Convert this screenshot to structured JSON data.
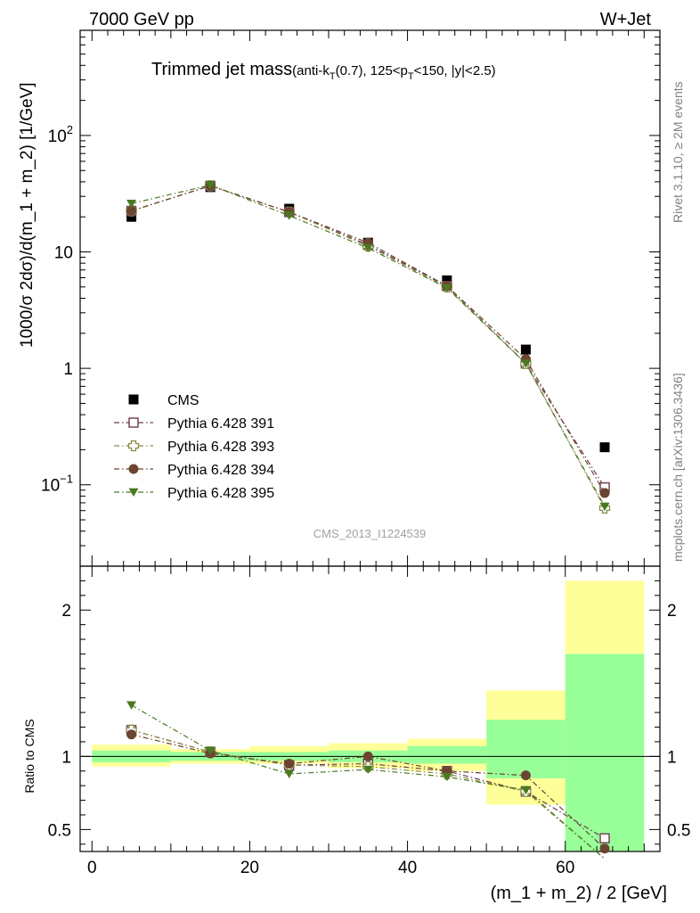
{
  "header": {
    "left": "7000 GeV pp",
    "right": "W+Jet",
    "title_main": "Trimmed jet mass",
    "title_detail_1": "(anti-k",
    "title_sub_1": "T",
    "title_detail_2": "(0.7), 125<p",
    "title_sub_2": "T",
    "title_detail_3": "<150, |y|<2.5)"
  },
  "side_labels": {
    "rivet": "Rivet 3.1.10, ≥ 2M events",
    "mcplots": "mcplots.cern.ch [arXiv:1306.3436]"
  },
  "watermark": "CMS_2013_I1224539",
  "chart_data": [
    {
      "panel": "main",
      "type": "scatter",
      "ylabel": "1000/σ 2dσ)/d(m_1 + m_2) [1/GeV]",
      "yscale": "log",
      "ylim": [
        0.02,
        800
      ],
      "xlim": [
        -1.5,
        72
      ],
      "y_ticks": [
        {
          "v": 0.1,
          "base": "10",
          "exp": "−1"
        },
        {
          "v": 1,
          "label": "1"
        },
        {
          "v": 10,
          "label": "10"
        },
        {
          "v": 100,
          "base": "10",
          "exp": "2"
        }
      ],
      "x": [
        5,
        15,
        25,
        35,
        45,
        55,
        65
      ],
      "series": [
        {
          "name": "CMS",
          "color": "#000000",
          "marker": "square-filled",
          "line": "none",
          "values": [
            20.0,
            36.0,
            23.5,
            12.0,
            5.7,
            1.45,
            0.21
          ]
        },
        {
          "name": "Pythia 6.428 391",
          "color": "#6b3a4f",
          "marker": "square-open",
          "line": "dash-dot",
          "values": [
            22.5,
            37.0,
            22.0,
            11.5,
            5.1,
            1.1,
            0.095
          ]
        },
        {
          "name": "Pythia 6.428 393",
          "color": "#8a8a4a",
          "marker": "cross-open",
          "line": "dash-dot",
          "values": [
            22.5,
            37.0,
            22.0,
            11.2,
            5.0,
            1.1,
            0.063
          ]
        },
        {
          "name": "Pythia 6.428 394",
          "color": "#6b4530",
          "marker": "circle-filled",
          "line": "dash-dot",
          "values": [
            22.5,
            37.0,
            22.0,
            12.0,
            5.1,
            1.2,
            0.085
          ]
        },
        {
          "name": "Pythia 6.428 395",
          "color": "#4a7a20",
          "marker": "triangle-down-filled",
          "line": "dash-dot",
          "values": [
            26.0,
            37.5,
            20.5,
            10.8,
            4.9,
            1.1,
            0.065
          ]
        }
      ]
    },
    {
      "panel": "ratio",
      "type": "scatter",
      "ylabel": "Ratio to CMS",
      "xlabel": "(m_1 + m_2) / 2 [GeV]",
      "ylim": [
        0.35,
        2.3
      ],
      "xlim": [
        -1.5,
        72
      ],
      "x_ticks": [
        0,
        20,
        40,
        60
      ],
      "y_ticks": [
        0.5,
        1,
        2
      ],
      "bands": {
        "bins": [
          [
            0,
            10
          ],
          [
            10,
            20
          ],
          [
            20,
            30
          ],
          [
            30,
            40
          ],
          [
            40,
            50
          ],
          [
            50,
            60
          ],
          [
            60,
            70
          ]
        ],
        "stat": [
          [
            0.96,
            1.04
          ],
          [
            0.97,
            1.03
          ],
          [
            0.97,
            1.03
          ],
          [
            0.96,
            1.04
          ],
          [
            0.95,
            1.07
          ],
          [
            0.85,
            1.25
          ],
          [
            0.35,
            1.7
          ]
        ],
        "total": [
          [
            0.93,
            1.08
          ],
          [
            0.95,
            1.05
          ],
          [
            0.95,
            1.07
          ],
          [
            0.92,
            1.09
          ],
          [
            0.9,
            1.12
          ],
          [
            0.67,
            1.45
          ],
          [
            0.35,
            2.2
          ]
        ],
        "stat_color": "#99ff99",
        "total_color": "#ffff99"
      },
      "x": [
        5,
        15,
        25,
        35,
        45,
        55,
        65
      ],
      "series": [
        {
          "name": "Pythia 6.428 391",
          "color": "#6b3a4f",
          "marker": "square-open",
          "values": [
            1.18,
            1.03,
            0.94,
            0.95,
            0.9,
            0.76,
            0.44
          ]
        },
        {
          "name": "Pythia 6.428 393",
          "color": "#8a8a4a",
          "marker": "cross-open",
          "values": [
            1.18,
            1.03,
            0.94,
            0.93,
            0.88,
            0.76,
            0.3
          ]
        },
        {
          "name": "Pythia 6.428 394",
          "color": "#6b4530",
          "marker": "circle-filled",
          "values": [
            1.15,
            1.02,
            0.95,
            1.0,
            0.9,
            0.87,
            0.37
          ]
        },
        {
          "name": "Pythia 6.428 395",
          "color": "#4a7a20",
          "marker": "triangle-down-filled",
          "values": [
            1.35,
            1.04,
            0.88,
            0.91,
            0.86,
            0.77,
            0.3
          ]
        }
      ]
    }
  ]
}
